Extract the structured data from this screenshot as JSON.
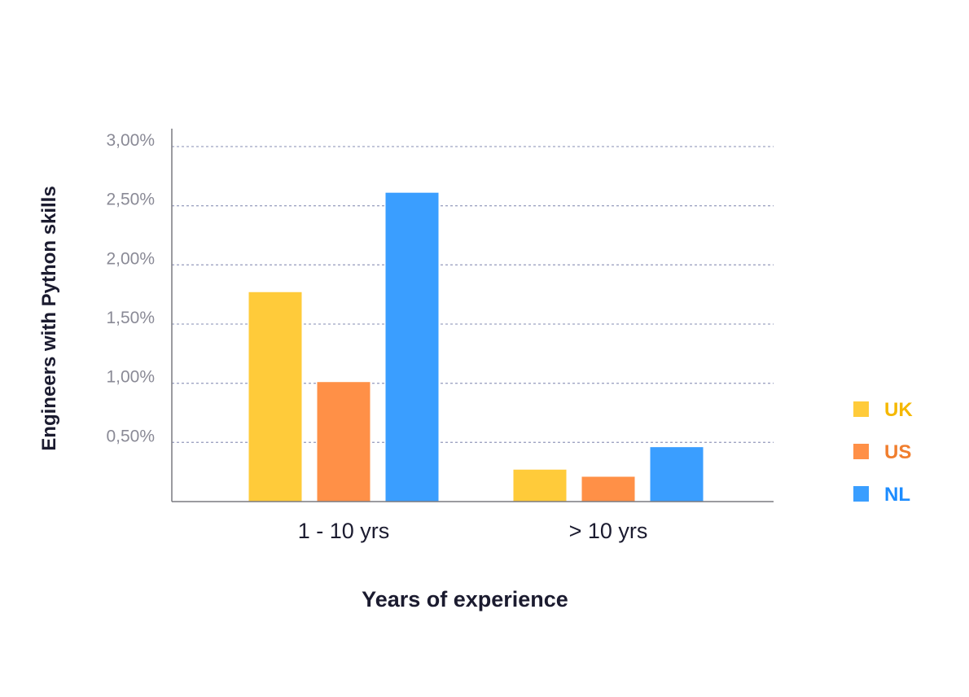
{
  "chart_data": {
    "type": "bar",
    "xlabel": "Years of experience",
    "ylabel": "Engineers with Python skills",
    "categories": [
      "1 - 10 yrs",
      "> 10 yrs"
    ],
    "series": [
      {
        "name": "UK",
        "color": "#FFCB3A",
        "values": [
          1.77,
          0.27
        ]
      },
      {
        "name": "US",
        "color": "#FF9047",
        "values": [
          1.01,
          0.21
        ]
      },
      {
        "name": "NL",
        "color": "#3A9EFF",
        "values": [
          2.61,
          0.46
        ]
      }
    ],
    "ylim": [
      0,
      3.0
    ],
    "yticks": [
      0.5,
      1.0,
      1.5,
      2.0,
      2.5,
      3.0
    ],
    "ytick_labels": [
      "0,50%",
      "1,00%",
      "1,50%",
      "2,00%",
      "2,50%",
      "3,00%"
    ],
    "grid": true,
    "legend_position": "right",
    "legend_label_colors": [
      "#F5B800",
      "#F07E2E",
      "#1C8CFF"
    ]
  }
}
